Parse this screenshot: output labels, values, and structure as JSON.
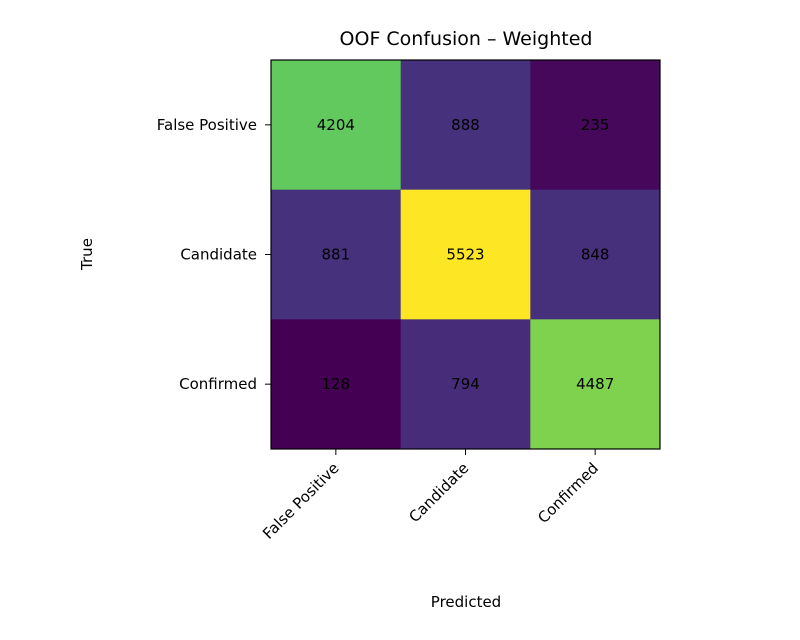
{
  "chart_data": {
    "type": "heatmap",
    "title": "OOF Confusion – Weighted",
    "xlabel": "Predicted",
    "ylabel": "True",
    "x_categories": [
      "False Positive",
      "Candidate",
      "Confirmed"
    ],
    "y_categories": [
      "False Positive",
      "Candidate",
      "Confirmed"
    ],
    "values": [
      [
        4204,
        888,
        235
      ],
      [
        881,
        5523,
        848
      ],
      [
        128,
        794,
        4487
      ]
    ],
    "colormap": "viridis",
    "cell_labels": true,
    "grid": false,
    "legend": "none"
  }
}
